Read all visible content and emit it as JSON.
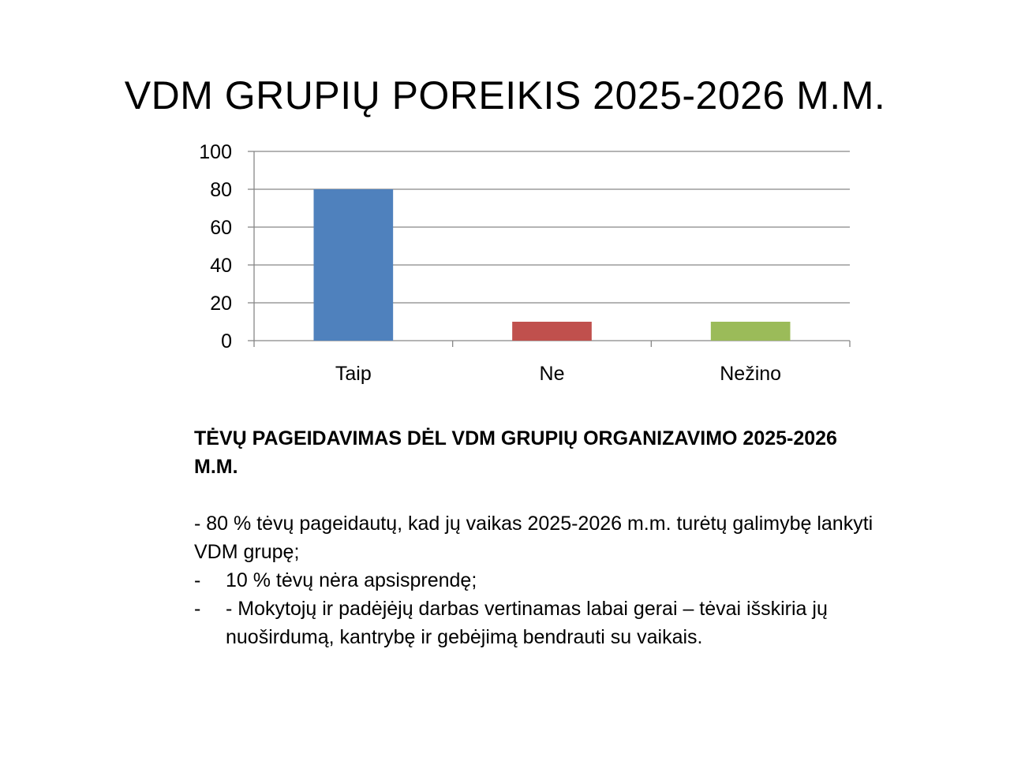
{
  "title": "VDM GRUPIŲ POREIKIS 2025-2026 M.M.",
  "chart_data": {
    "type": "bar",
    "categories": [
      "Taip",
      "Ne",
      "Nežino"
    ],
    "values": [
      80,
      10,
      10
    ],
    "colors": [
      "#4f81bd",
      "#c0504d",
      "#9bbb59"
    ],
    "ylim": [
      0,
      100
    ],
    "yticks": [
      0,
      20,
      40,
      60,
      80,
      100
    ],
    "grid": true,
    "legend": "none"
  },
  "text": {
    "heading": "TĖVŲ PAGEIDAVIMAS DĖL VDM GRUPIŲ ORGANIZAVIMO 2025-2026 M.M.",
    "paragraph": "- 80 % tėvų pageidautų, kad jų vaikas 2025-2026 m.m. turėtų galimybę lankyti VDM grupę;",
    "bullets": [
      {
        "dash": "-",
        "text": "10 % tėvų nėra apsisprendę;"
      },
      {
        "dash": "-",
        "text": "- Mokytojų ir padėjėjų darbas vertinamas labai gerai – tėvai išskiria jų nuoširdumą, kantrybę ir gebėjimą bendrauti su vaikais."
      }
    ]
  }
}
